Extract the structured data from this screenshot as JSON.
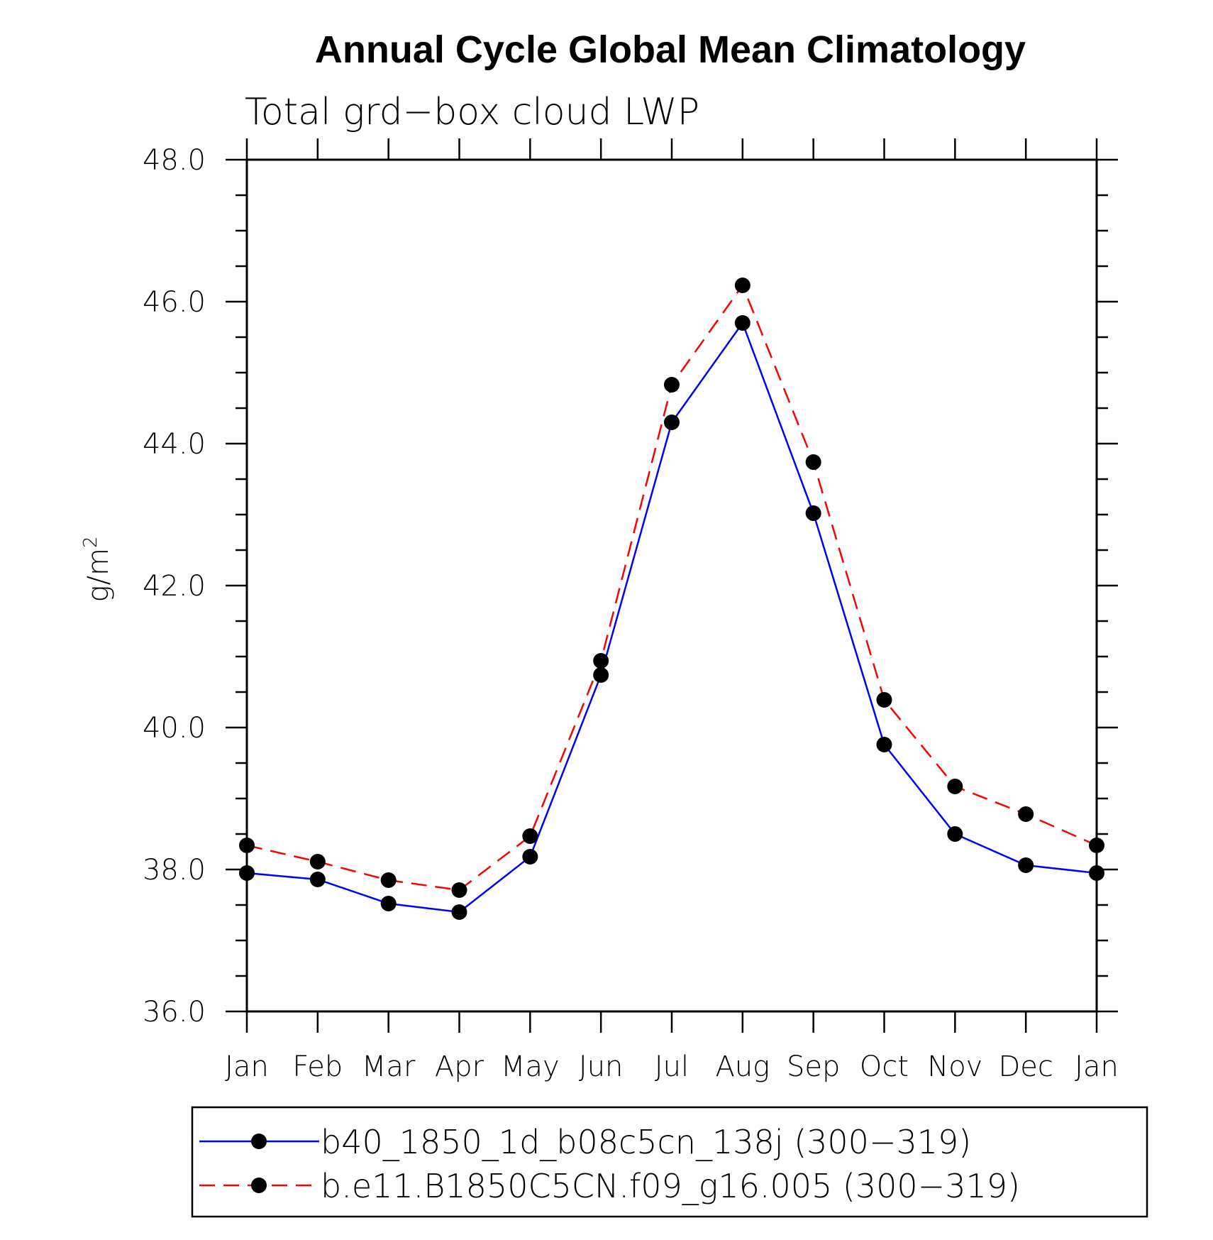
{
  "chart_data": {
    "type": "line",
    "title": "Annual Cycle Global Mean Climatology",
    "subtitle": "Total grd−box cloud LWP",
    "ylabel": "g/m",
    "ylabel_sup": "2",
    "xlabel": "",
    "categories": [
      "Jan",
      "Feb",
      "Mar",
      "Apr",
      "May",
      "Jun",
      "Jul",
      "Aug",
      "Sep",
      "Oct",
      "Nov",
      "Dec",
      "Jan"
    ],
    "ylim": [
      36.0,
      48.0
    ],
    "yticks": [
      "36.0",
      "38.0",
      "40.0",
      "42.0",
      "44.0",
      "46.0",
      "48.0"
    ],
    "grid": false,
    "legend_position": "bottom",
    "series": [
      {
        "name": "b40_1850_1d_b08c5cn_138j (300−319)",
        "color": "#0000ff",
        "dash": "solid",
        "values": [
          37.95,
          37.86,
          37.52,
          37.4,
          38.18,
          40.74,
          44.3,
          45.7,
          43.02,
          39.76,
          38.5,
          38.06,
          37.95
        ]
      },
      {
        "name": "b.e11.B1850C5CN.f09_g16.005 (300−319)",
        "color": "#ff0000",
        "dash": "dashed",
        "values": [
          38.34,
          38.11,
          37.85,
          37.71,
          38.47,
          40.94,
          44.83,
          46.23,
          43.74,
          40.39,
          39.17,
          38.78,
          38.34
        ]
      }
    ]
  }
}
